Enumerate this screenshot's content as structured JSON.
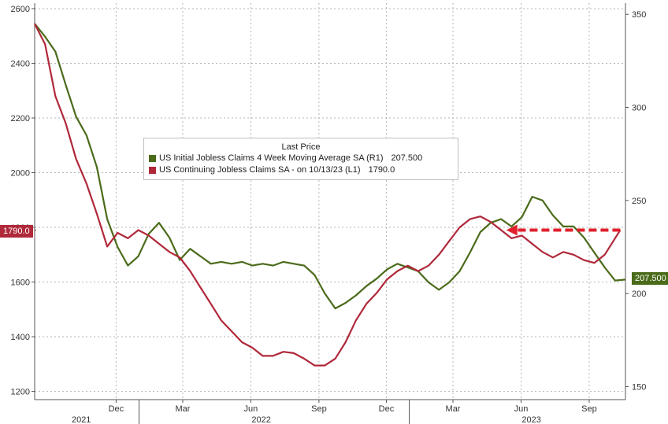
{
  "chart_data": {
    "type": "line",
    "title": "",
    "x_range": [
      "2021-08-13",
      "2023-10-20"
    ],
    "left_axis": {
      "ylim": [
        1170,
        2620
      ],
      "ticks": [
        1200,
        1400,
        1600,
        1800,
        2000,
        2200,
        2400,
        2600
      ]
    },
    "right_axis": {
      "ylim": [
        143,
        356
      ],
      "ticks": [
        150,
        200,
        250,
        300,
        350
      ]
    },
    "x_tick_labels": [
      {
        "date": "2021-12-01",
        "label": "Dec"
      },
      {
        "date": "2022-03-01",
        "label": "Mar"
      },
      {
        "date": "2022-06-01",
        "label": "Jun"
      },
      {
        "date": "2022-09-01",
        "label": "Sep"
      },
      {
        "date": "2022-12-01",
        "label": "Dec"
      },
      {
        "date": "2023-03-01",
        "label": "Mar"
      },
      {
        "date": "2023-06-01",
        "label": "Jun"
      },
      {
        "date": "2023-09-01",
        "label": "Sep"
      }
    ],
    "year_labels": [
      {
        "date": "2021-10-15",
        "label": "2021"
      },
      {
        "date": "2022-06-15",
        "label": "2022"
      },
      {
        "date": "2023-06-15",
        "label": "2023"
      }
    ],
    "grid": true,
    "legend": {
      "position": "top-center",
      "title": "Last Price",
      "entries": [
        {
          "label": "US Initial Jobless Claims 4 Week Moving Average SA  (R1)",
          "value": "207.500",
          "color": "#4a6b1a"
        },
        {
          "label": "US Continuing Jobless Claims SA -  on 10/13/23  (L1)",
          "value": "1790.0",
          "color": "#b0283a"
        }
      ]
    },
    "last_value_flags": {
      "left": "1790.0",
      "right": "207.500"
    },
    "series": [
      {
        "axis": "right",
        "color": "#4a6b1a",
        "points": [
          [
            "2021-08-13",
            345
          ],
          [
            "2021-08-27",
            338
          ],
          [
            "2021-09-10",
            330
          ],
          [
            "2021-09-24",
            312
          ],
          [
            "2021-10-08",
            295
          ],
          [
            "2021-10-22",
            285
          ],
          [
            "2021-11-05",
            268
          ],
          [
            "2021-11-19",
            240
          ],
          [
            "2021-12-03",
            225
          ],
          [
            "2021-12-17",
            215
          ],
          [
            "2021-12-31",
            220
          ],
          [
            "2022-01-14",
            232
          ],
          [
            "2022-01-28",
            238
          ],
          [
            "2022-02-11",
            230
          ],
          [
            "2022-02-25",
            218
          ],
          [
            "2022-03-11",
            224
          ],
          [
            "2022-03-25",
            220
          ],
          [
            "2022-04-08",
            216
          ],
          [
            "2022-04-22",
            217
          ],
          [
            "2022-05-06",
            216
          ],
          [
            "2022-05-20",
            217
          ],
          [
            "2022-06-03",
            215
          ],
          [
            "2022-06-17",
            216
          ],
          [
            "2022-07-01",
            215
          ],
          [
            "2022-07-15",
            217
          ],
          [
            "2022-07-29",
            216
          ],
          [
            "2022-08-12",
            215
          ],
          [
            "2022-08-26",
            210
          ],
          [
            "2022-09-09",
            200
          ],
          [
            "2022-09-23",
            192
          ],
          [
            "2022-10-07",
            195
          ],
          [
            "2022-10-21",
            199
          ],
          [
            "2022-11-04",
            204
          ],
          [
            "2022-11-18",
            208
          ],
          [
            "2022-12-02",
            213
          ],
          [
            "2022-12-16",
            216
          ],
          [
            "2022-12-30",
            214
          ],
          [
            "2023-01-13",
            212
          ],
          [
            "2023-01-27",
            206
          ],
          [
            "2023-02-10",
            202
          ],
          [
            "2023-02-24",
            206
          ],
          [
            "2023-03-10",
            212
          ],
          [
            "2023-03-24",
            222
          ],
          [
            "2023-04-07",
            233
          ],
          [
            "2023-04-21",
            238
          ],
          [
            "2023-05-05",
            240
          ],
          [
            "2023-05-19",
            236
          ],
          [
            "2023-06-02",
            241
          ],
          [
            "2023-06-16",
            252
          ],
          [
            "2023-06-30",
            250
          ],
          [
            "2023-07-14",
            242
          ],
          [
            "2023-07-28",
            236
          ],
          [
            "2023-08-11",
            236
          ],
          [
            "2023-08-25",
            230
          ],
          [
            "2023-09-08",
            222
          ],
          [
            "2023-09-22",
            214
          ],
          [
            "2023-10-06",
            207
          ],
          [
            "2023-10-20",
            207.5
          ]
        ]
      },
      {
        "axis": "left",
        "color": "#b0283a",
        "points": [
          [
            "2021-08-13",
            2545
          ],
          [
            "2021-08-27",
            2470
          ],
          [
            "2021-09-10",
            2280
          ],
          [
            "2021-09-24",
            2180
          ],
          [
            "2021-10-08",
            2050
          ],
          [
            "2021-10-22",
            1960
          ],
          [
            "2021-11-05",
            1850
          ],
          [
            "2021-11-19",
            1730
          ],
          [
            "2021-12-03",
            1780
          ],
          [
            "2021-12-17",
            1760
          ],
          [
            "2021-12-31",
            1790
          ],
          [
            "2022-01-14",
            1770
          ],
          [
            "2022-01-28",
            1740
          ],
          [
            "2022-02-11",
            1710
          ],
          [
            "2022-02-25",
            1690
          ],
          [
            "2022-03-11",
            1640
          ],
          [
            "2022-03-25",
            1580
          ],
          [
            "2022-04-08",
            1520
          ],
          [
            "2022-04-22",
            1460
          ],
          [
            "2022-05-06",
            1420
          ],
          [
            "2022-05-20",
            1380
          ],
          [
            "2022-06-03",
            1360
          ],
          [
            "2022-06-17",
            1330
          ],
          [
            "2022-07-01",
            1330
          ],
          [
            "2022-07-15",
            1345
          ],
          [
            "2022-07-29",
            1340
          ],
          [
            "2022-08-12",
            1320
          ],
          [
            "2022-08-26",
            1295
          ],
          [
            "2022-09-09",
            1295
          ],
          [
            "2022-09-23",
            1320
          ],
          [
            "2022-10-07",
            1380
          ],
          [
            "2022-10-21",
            1460
          ],
          [
            "2022-11-04",
            1520
          ],
          [
            "2022-11-18",
            1560
          ],
          [
            "2022-12-02",
            1610
          ],
          [
            "2022-12-16",
            1640
          ],
          [
            "2022-12-30",
            1660
          ],
          [
            "2023-01-13",
            1640
          ],
          [
            "2023-01-27",
            1660
          ],
          [
            "2023-02-10",
            1700
          ],
          [
            "2023-02-24",
            1750
          ],
          [
            "2023-03-10",
            1800
          ],
          [
            "2023-03-24",
            1830
          ],
          [
            "2023-04-07",
            1840
          ],
          [
            "2023-04-21",
            1820
          ],
          [
            "2023-05-05",
            1790
          ],
          [
            "2023-05-19",
            1760
          ],
          [
            "2023-06-02",
            1770
          ],
          [
            "2023-06-16",
            1740
          ],
          [
            "2023-06-30",
            1710
          ],
          [
            "2023-07-14",
            1690
          ],
          [
            "2023-07-28",
            1710
          ],
          [
            "2023-08-11",
            1700
          ],
          [
            "2023-08-25",
            1680
          ],
          [
            "2023-09-08",
            1670
          ],
          [
            "2023-09-22",
            1700
          ],
          [
            "2023-10-06",
            1760
          ],
          [
            "2023-10-13",
            1790
          ]
        ]
      }
    ]
  }
}
